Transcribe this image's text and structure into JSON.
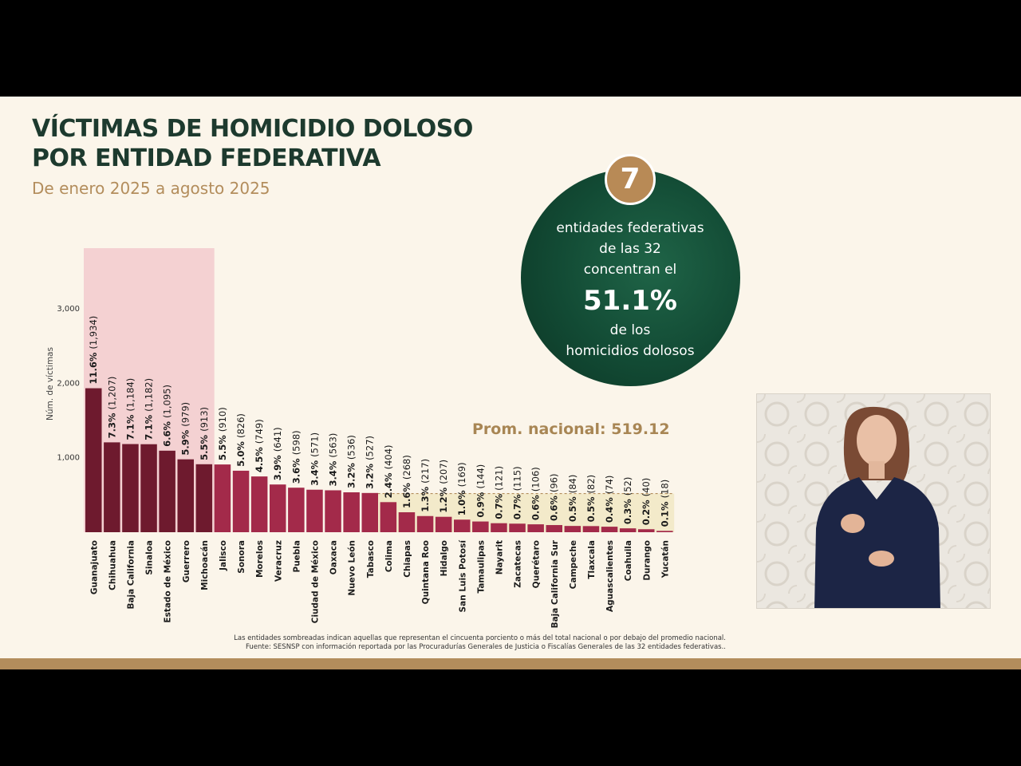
{
  "slide": {
    "title_line1": "VÍCTIMAS DE HOMICIDIO DOLOSO",
    "title_line2": "POR ENTIDAD FEDERATIVA",
    "subtitle": "De enero 2025 a agosto 2025",
    "circle": {
      "badge": "7",
      "line1": "entidades federativas",
      "line2": "de las 32",
      "line3": "concentran el",
      "big": "51.1%",
      "line4": "de los",
      "line5": "homicidios dolosos"
    },
    "prom_label": "Prom. nacional: 519.12",
    "footnote_line1": "Las entidades sombreadas indican aquellas que representan el cincuenta porciento o más del total nacional o por debajo del promedio nacional.",
    "footnote_line2": "Fuente: SESNSP con información reportada por las Procuradurías Generales de Justicia o Fiscalías Generales de las 32 entidades federativas.."
  },
  "colors": {
    "dark_bar": "#6e1a2e",
    "bar": "#a32a4a",
    "highlight_top": "#f2c8cc",
    "highlight_bottom": "#f2e9c6",
    "green": "#124a34",
    "gold": "#b38d5c"
  },
  "chart_data": {
    "type": "bar",
    "ylabel": "Núm. de víctimas",
    "ylim": [
      0,
      3800
    ],
    "yticks": [
      "1,000",
      "2,000",
      "3,000"
    ],
    "ytick_values": [
      1000,
      2000,
      3000
    ],
    "average": 519.12,
    "highlight_top_count": 7,
    "categories": [
      "Guanajuato",
      "Chihuahua",
      "Baja California",
      "Sinaloa",
      "Estado de México",
      "Guerrero",
      "Michoacán",
      "Jalisco",
      "Sonora",
      "Morelos",
      "Veracruz",
      "Puebla",
      "Ciudad de México",
      "Oaxaca",
      "Nuevo León",
      "Tabasco",
      "Colima",
      "Chiapas",
      "Quintana Roo",
      "Hidalgo",
      "San Luis Potosí",
      "Tamaulipas",
      "Nayarit",
      "Zacatecas",
      "Querétaro",
      "Baja California Sur",
      "Campeche",
      "Tlaxcala",
      "Aguascalientes",
      "Coahuila",
      "Durango",
      "Yucatán"
    ],
    "values": [
      1934,
      1207,
      1184,
      1182,
      1095,
      979,
      913,
      910,
      826,
      749,
      641,
      598,
      571,
      563,
      536,
      527,
      404,
      268,
      217,
      207,
      169,
      144,
      121,
      115,
      106,
      96,
      84,
      82,
      74,
      52,
      40,
      18
    ],
    "pct": [
      "11.6%",
      "7.3%",
      "7.1%",
      "7.1%",
      "6.6%",
      "5.9%",
      "5.5%",
      "5.5%",
      "5.0%",
      "4.5%",
      "3.9%",
      "3.6%",
      "3.4%",
      "3.4%",
      "3.2%",
      "3.2%",
      "2.4%",
      "1.6%",
      "1.3%",
      "1.2%",
      "1.0%",
      "0.9%",
      "0.7%",
      "0.7%",
      "0.6%",
      "0.6%",
      "0.5%",
      "0.5%",
      "0.4%",
      "0.3%",
      "0.2%",
      "0.1%"
    ],
    "count_labels": [
      "(1,934)",
      "(1,207)",
      "(1,184)",
      "(1,182)",
      "(1,095)",
      "(979)",
      "(913)",
      "(910)",
      "(826)",
      "(749)",
      "(641)",
      "(598)",
      "(571)",
      "(563)",
      "(536)",
      "(527)",
      "(404)",
      "(268)",
      "(217)",
      "(207)",
      "(169)",
      "(144)",
      "(121)",
      "(115)",
      "(106)",
      "(96)",
      "(84)",
      "(82)",
      "(74)",
      "(52)",
      "(40)",
      "(18)"
    ]
  }
}
